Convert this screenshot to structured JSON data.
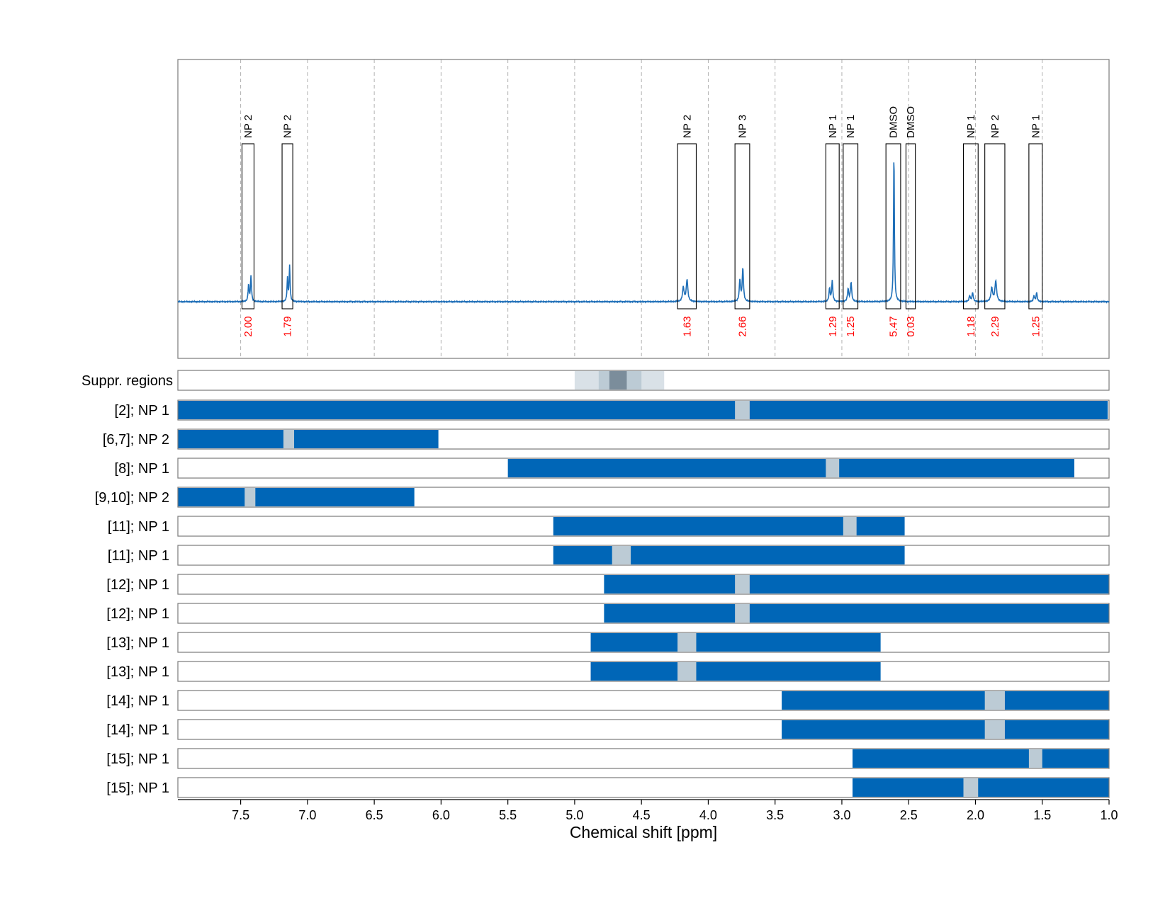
{
  "chart_data": {
    "type": "nmr_spectrum_with_range_bars",
    "xlabel": "Chemical shift [ppm]",
    "xlim": [
      7.97,
      1.0
    ],
    "xticks": [
      7.5,
      7.0,
      6.5,
      6.0,
      5.5,
      5.0,
      4.5,
      4.0,
      3.5,
      3.0,
      2.5,
      2.0,
      1.5,
      1.0
    ],
    "xtick_labels": [
      "7.5",
      "7.0",
      "6.5",
      "6.0",
      "5.5",
      "5.0",
      "4.5",
      "4.0",
      "3.5",
      "3.0",
      "2.5",
      "2.0",
      "1.5",
      "1.0"
    ],
    "colors": {
      "spectrum": "#1f6fb8",
      "bar": "#0066b7",
      "bar_gap": "#bccbd5",
      "integral_text": "#ff0000",
      "grid": "#b0b0b0",
      "suppr_light": "#d9e1e7",
      "suppr_mid": "#bccbd5",
      "suppr_dark": "#7b8d9b"
    },
    "peaks": [
      {
        "label": "NP 2",
        "integral": "2.00",
        "range": [
          7.49,
          7.4
        ],
        "center": 7.43,
        "height": 0.2
      },
      {
        "label": "NP 2",
        "integral": "1.79",
        "range": [
          7.19,
          7.11
        ],
        "center": 7.14,
        "height": 0.28
      },
      {
        "label": "NP 2",
        "integral": "1.63",
        "range": [
          4.23,
          4.09
        ],
        "center": 4.17,
        "height": 0.17
      },
      {
        "label": "NP 3",
        "integral": "2.66",
        "range": [
          3.8,
          3.69
        ],
        "center": 3.75,
        "height": 0.26
      },
      {
        "label": "NP 1",
        "integral": "1.29",
        "range": [
          3.12,
          3.02
        ],
        "center": 3.08,
        "height": 0.16
      },
      {
        "label": "NP 1",
        "integral": "1.25",
        "range": [
          2.99,
          2.88
        ],
        "center": 2.94,
        "height": 0.15
      },
      {
        "label": "DMSO",
        "integral": "5.47",
        "range": [
          2.67,
          2.56
        ],
        "center": 2.61,
        "height": 1.0
      },
      {
        "label": "DMSO",
        "integral": "0.03",
        "range": [
          2.52,
          2.45
        ],
        "center": 2.48,
        "height": 0.0
      },
      {
        "label": "NP 1",
        "integral": "1.18",
        "range": [
          2.09,
          1.98
        ],
        "center": 2.03,
        "height": 0.07
      },
      {
        "label": "NP 2",
        "integral": "2.29",
        "range": [
          1.93,
          1.78
        ],
        "center": 1.86,
        "height": 0.16
      },
      {
        "label": "NP 1",
        "integral": "1.25",
        "range": [
          1.6,
          1.5
        ],
        "center": 1.55,
        "height": 0.07
      }
    ],
    "suppression_regions": {
      "label": "Suppr. regions",
      "bands": [
        {
          "from": 5.0,
          "to": 4.33,
          "shade": "light"
        },
        {
          "from": 4.82,
          "to": 4.5,
          "shade": "mid"
        },
        {
          "from": 4.74,
          "to": 4.61,
          "shade": "dark"
        }
      ]
    },
    "rows": [
      {
        "label": "[2]; NP 1",
        "bar": [
          7.97,
          1.01
        ],
        "gap": [
          3.8,
          3.69
        ]
      },
      {
        "label": "[6,7]; NP 2",
        "bar": [
          7.97,
          6.02
        ],
        "gap": [
          7.18,
          7.1
        ]
      },
      {
        "label": "[8]; NP 1",
        "bar": [
          5.5,
          1.26
        ],
        "gap": [
          3.12,
          3.02
        ]
      },
      {
        "label": "[9,10]; NP 2",
        "bar": [
          7.97,
          6.2
        ],
        "gap": [
          7.47,
          7.39
        ]
      },
      {
        "label": "[11]; NP 1",
        "bar": [
          5.16,
          2.53
        ],
        "gap": [
          2.99,
          2.89
        ]
      },
      {
        "label": "[11]; NP 1",
        "bar": [
          5.16,
          2.53
        ],
        "gap": [
          4.72,
          4.58
        ]
      },
      {
        "label": "[12]; NP 1",
        "bar": [
          4.78,
          1.0
        ],
        "gap": [
          3.8,
          3.69
        ]
      },
      {
        "label": "[12]; NP 1",
        "bar": [
          4.78,
          1.0
        ],
        "gap": [
          3.8,
          3.69
        ]
      },
      {
        "label": "[13]; NP 1",
        "bar": [
          4.88,
          2.71
        ],
        "gap": [
          4.23,
          4.09
        ]
      },
      {
        "label": "[13]; NP 1",
        "bar": [
          4.88,
          2.71
        ],
        "gap": [
          4.23,
          4.09
        ]
      },
      {
        "label": "[14]; NP 1",
        "bar": [
          3.45,
          1.0
        ],
        "gap": [
          1.93,
          1.78
        ]
      },
      {
        "label": "[14]; NP 1",
        "bar": [
          3.45,
          1.0
        ],
        "gap": [
          1.93,
          1.78
        ]
      },
      {
        "label": "[15]; NP 1",
        "bar": [
          2.92,
          1.0
        ],
        "gap": [
          1.6,
          1.5
        ]
      },
      {
        "label": "[15]; NP 1",
        "bar": [
          2.92,
          1.0
        ],
        "gap": [
          2.09,
          1.98
        ]
      }
    ]
  }
}
